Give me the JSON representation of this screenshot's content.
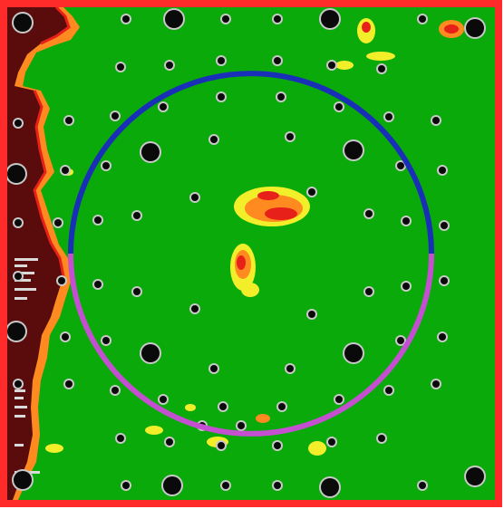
{
  "colors": {
    "background": "#ffffff",
    "frame": "#ff2a2a",
    "field": "#0aaa0a",
    "dark_region": "#5a0c0c",
    "hot_red": "#e8201a",
    "hot_orange": "#ff8a20",
    "hot_yellow": "#f2ee2a",
    "circle_upper": "#1a2fb8",
    "circle_lower": "#c44fd0",
    "pit": "#0a0a0a",
    "pit_ring": "#c9c9c9",
    "tick_label": "#d9d9d9"
  },
  "holes": {
    "large_count": 13,
    "small_count": 100
  }
}
